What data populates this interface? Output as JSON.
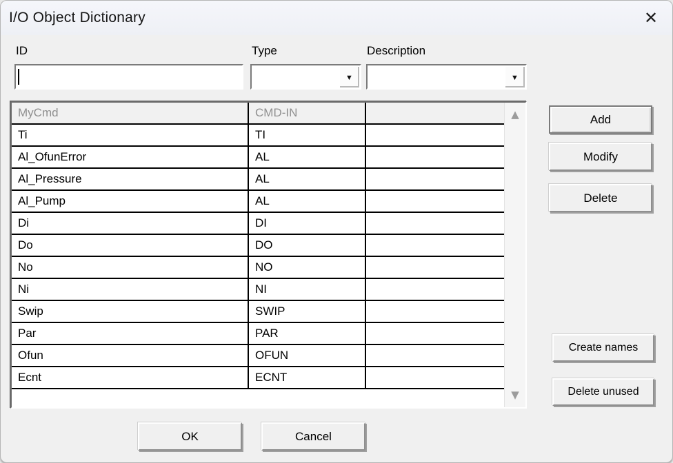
{
  "window": {
    "title": "I/O Object Dictionary"
  },
  "icons": {
    "close": "✕",
    "dropdown": "▼",
    "scroll_up": "▲",
    "scroll_down": "▼"
  },
  "filters": {
    "id": {
      "label": "ID",
      "value": ""
    },
    "type": {
      "label": "Type",
      "value": ""
    },
    "description": {
      "label": "Description",
      "value": ""
    }
  },
  "table": {
    "rows": [
      {
        "id": "MyCmd",
        "type": "CMD-IN",
        "description": "",
        "muted": true
      },
      {
        "id": "Ti",
        "type": "TI",
        "description": "",
        "muted": false
      },
      {
        "id": "Al_OfunError",
        "type": "AL",
        "description": "",
        "muted": false
      },
      {
        "id": "Al_Pressure",
        "type": "AL",
        "description": "",
        "muted": false
      },
      {
        "id": "Al_Pump",
        "type": "AL",
        "description": "",
        "muted": false
      },
      {
        "id": "Di",
        "type": "DI",
        "description": "",
        "muted": false
      },
      {
        "id": "Do",
        "type": "DO",
        "description": "",
        "muted": false
      },
      {
        "id": "No",
        "type": "NO",
        "description": "",
        "muted": false
      },
      {
        "id": "Ni",
        "type": "NI",
        "description": "",
        "muted": false
      },
      {
        "id": "Swip",
        "type": "SWIP",
        "description": "",
        "muted": false
      },
      {
        "id": "Par",
        "type": "PAR",
        "description": "",
        "muted": false
      },
      {
        "id": "Ofun",
        "type": "OFUN",
        "description": "",
        "muted": false
      },
      {
        "id": "Ecnt",
        "type": "ECNT",
        "description": "",
        "muted": false
      }
    ]
  },
  "actions": {
    "add": "Add",
    "modify": "Modify",
    "delete": "Delete",
    "create_names": "Create names",
    "delete_unused": "Delete unused"
  },
  "footer": {
    "ok": "OK",
    "cancel": "Cancel"
  },
  "colors": {
    "dialog_bg": "#f0f0f0",
    "titlebar_bg": "#f2f3f8",
    "grid_line": "#000000",
    "muted_text": "#8f8f8f",
    "sunken_border": "#7b7b7b",
    "scroll_arrow": "#9c9c9c"
  }
}
